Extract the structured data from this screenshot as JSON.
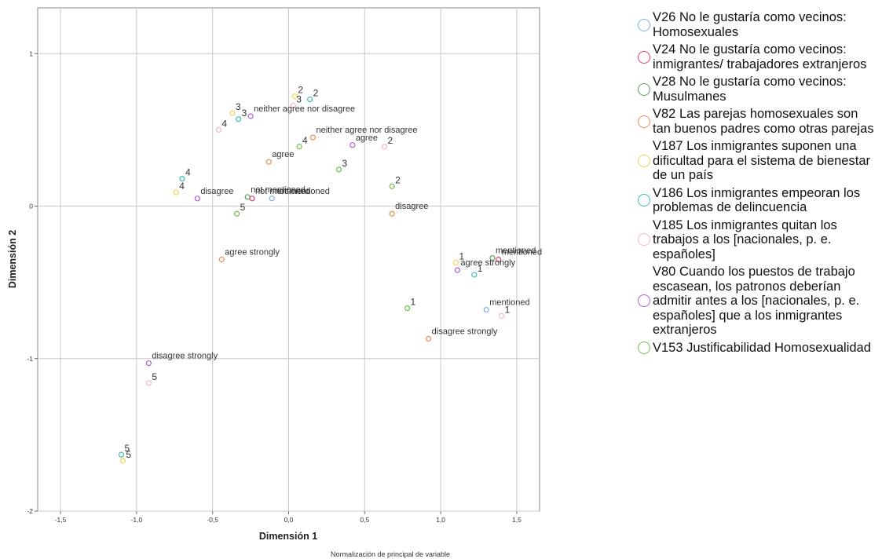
{
  "chart_data": {
    "type": "scatter",
    "xlabel": "Dimensión 1",
    "ylabel": "Dimensión 2",
    "footnote": "Normalización de principal de variable",
    "xlim": [
      -1.65,
      1.65
    ],
    "ylim": [
      -2.0,
      1.3
    ],
    "x_ticks": [
      -1.5,
      -1.0,
      -0.5,
      0.0,
      0.5,
      1.0,
      1.5
    ],
    "x_tick_labels": [
      "-1,5",
      "-1,0",
      "-0,5",
      "0,0",
      "0,5",
      "1,0",
      "1,5"
    ],
    "y_ticks": [
      -2,
      -1,
      0,
      1
    ],
    "y_tick_labels": [
      "-2",
      "-1",
      "0",
      "1"
    ],
    "grid": true,
    "legend_position": "right",
    "series": [
      {
        "name": "V26 No le gustaría como vecinos: Homosexuales",
        "color": "#7fb2e5",
        "points": [
          {
            "x": -0.11,
            "y": 0.05,
            "label": "not mentioned"
          },
          {
            "x": 1.3,
            "y": -0.68,
            "label": "mentioned"
          }
        ]
      },
      {
        "name": "V24 No le gustaría como vecinos: inmigrantes/ trabajadores extranjeros",
        "color": "#e8406a",
        "points": [
          {
            "x": -0.24,
            "y": 0.05,
            "label": "not mentioned"
          },
          {
            "x": 1.38,
            "y": -0.35,
            "label": "mentioned"
          }
        ]
      },
      {
        "name": "V28 No le gustaría como vecinos: Musulmanes",
        "color": "#5a9e5a",
        "points": [
          {
            "x": -0.27,
            "y": 0.06,
            "label": "not mentioned"
          },
          {
            "x": 1.34,
            "y": -0.34,
            "label": "mentioned"
          }
        ]
      },
      {
        "name": "V82 Las parejas homosexuales son tan buenos padres como otras parejas",
        "color": "#f08a50",
        "points": [
          {
            "x": -0.44,
            "y": -0.35,
            "label": "agree strongly"
          },
          {
            "x": -0.13,
            "y": 0.29,
            "label": "agree"
          },
          {
            "x": 0.16,
            "y": 0.45,
            "label": "neither agree nor disagree"
          },
          {
            "x": 0.68,
            "y": -0.05,
            "label": "disagree"
          },
          {
            "x": 0.92,
            "y": -0.87,
            "label": "disagree strongly"
          }
        ]
      },
      {
        "name": "V187 Los inmigrantes suponen una dificultad para el sistema de bienestar de un país",
        "color": "#f2d454",
        "points": [
          {
            "x": 1.1,
            "y": -0.37,
            "label": "1"
          },
          {
            "x": 0.04,
            "y": 0.72,
            "label": "2"
          },
          {
            "x": -0.37,
            "y": 0.61,
            "label": "3"
          },
          {
            "x": -0.74,
            "y": 0.09,
            "label": "4"
          },
          {
            "x": -1.09,
            "y": -1.67,
            "label": "5"
          }
        ]
      },
      {
        "name": "V186 Los inmigrantes empeoran los problemas de delincuencia",
        "color": "#3cbcb0",
        "points": [
          {
            "x": 1.22,
            "y": -0.45,
            "label": "1"
          },
          {
            "x": 0.14,
            "y": 0.7,
            "label": "2"
          },
          {
            "x": -0.33,
            "y": 0.57,
            "label": "3"
          },
          {
            "x": -0.7,
            "y": 0.18,
            "label": "4"
          },
          {
            "x": -1.1,
            "y": -1.63,
            "label": "5"
          }
        ]
      },
      {
        "name": "V185 Los inmigrantes quitan los trabajos a los [nacionales, p. e. españoles]",
        "color": "#f7b6c6",
        "points": [
          {
            "x": 1.4,
            "y": -0.72,
            "label": "1"
          },
          {
            "x": 0.63,
            "y": 0.39,
            "label": "2"
          },
          {
            "x": 0.03,
            "y": 0.66,
            "label": "3"
          },
          {
            "x": -0.46,
            "y": 0.5,
            "label": "4"
          },
          {
            "x": -0.92,
            "y": -1.16,
            "label": "5"
          }
        ]
      },
      {
        "name": "V80 Cuando los puestos de trabajo escasean, los patronos deberían admitir antes a los [nacionales, p. e. españoles] que a los inmigrantes extranjeros",
        "color": "#b65cd6",
        "points": [
          {
            "x": 1.11,
            "y": -0.42,
            "label": "agree strongly"
          },
          {
            "x": 0.42,
            "y": 0.4,
            "label": "agree"
          },
          {
            "x": -0.25,
            "y": 0.59,
            "label": "neither agree nor disagree"
          },
          {
            "x": -0.6,
            "y": 0.05,
            "label": "disagree"
          },
          {
            "x": -0.92,
            "y": -1.03,
            "label": "disagree strongly"
          }
        ]
      },
      {
        "name": "V153 Justificabilidad Homosexualidad",
        "color": "#6cc24a",
        "points": [
          {
            "x": 0.78,
            "y": -0.67,
            "label": "1"
          },
          {
            "x": 0.68,
            "y": 0.13,
            "label": "2"
          },
          {
            "x": 0.33,
            "y": 0.24,
            "label": "3"
          },
          {
            "x": 0.07,
            "y": 0.39,
            "label": "4"
          },
          {
            "x": -0.34,
            "y": -0.05,
            "label": "5"
          }
        ]
      }
    ]
  },
  "legend": {
    "items": [
      {
        "text": "V26 No le gustaría como vecinos: Homosexuales",
        "color": "#7fb2e5"
      },
      {
        "text": "V24 No le gustaría como vecinos: inmigrantes/ trabajadores extranjeros",
        "color": "#e8406a"
      },
      {
        "text": "V28 No le gustaría como vecinos: Musulmanes",
        "color": "#5a9e5a"
      },
      {
        "text": "V82 Las parejas homosexuales son tan buenos padres como otras parejas",
        "color": "#f08a50"
      },
      {
        "text": "V187 Los inmigrantes suponen una dificultad para el sistema de bienestar de un país",
        "color": "#f2d454"
      },
      {
        "text": "V186 Los inmigrantes empeoran los problemas de delincuencia",
        "color": "#3cbcb0"
      },
      {
        "text": "V185 Los inmigrantes quitan los trabajos a los [nacionales, p. e. españoles]",
        "color": "#f7b6c6"
      },
      {
        "text": "V80 Cuando los puestos de trabajo escasean, los patronos deberían admitir antes a los [nacionales, p. e. españoles] que a los inmigrantes extranjeros",
        "color": "#b65cd6"
      },
      {
        "text": "V153 Justificabilidad Homosexualidad",
        "color": "#6cc24a"
      }
    ]
  }
}
